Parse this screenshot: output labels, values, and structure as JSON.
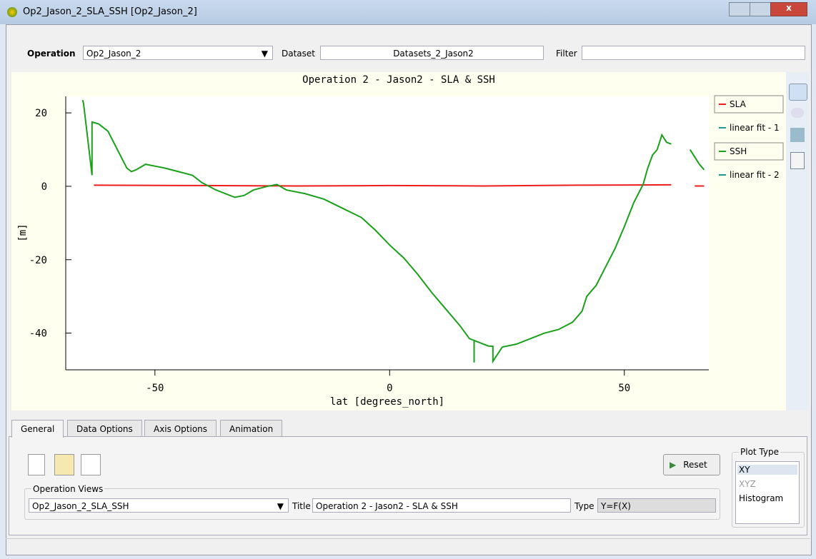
{
  "window": {
    "title": "Op2_Jason_2_SLA_SSH [Op2_Jason_2]"
  },
  "toolbar": {
    "operation_label": "Operation",
    "operation_value": "Op2_Jason_2",
    "dataset_label": "Dataset",
    "dataset_value": "Datasets_2_Jason2",
    "filter_label": "Filter"
  },
  "chart_data": {
    "type": "line",
    "title": "Operation 2 - Jason2 - SLA & SSH",
    "x_label": "lat [degrees_north]",
    "y_label": "[m]",
    "xlim": [
      -69,
      68
    ],
    "ylim": [
      -50,
      24.5
    ],
    "xticks": [
      -50,
      0,
      50
    ],
    "yticks": [
      -40,
      -20,
      0,
      20
    ],
    "series": [
      {
        "name": "SLA",
        "color": "#ee1c1c",
        "x": [
          -63,
          -40,
          -20,
          0,
          20,
          40,
          60,
          62,
          65,
          67
        ],
        "values": [
          0.3,
          0.2,
          0.1,
          0.2,
          0.1,
          0.3,
          0.4,
          null,
          0.1,
          0.1
        ]
      },
      {
        "name": "SSH",
        "color": "#1aa01a",
        "x": [
          -65.4,
          -65.2,
          -63.4,
          -63.4,
          -62,
          -60,
          -58,
          -56,
          -55,
          -54,
          -52,
          -50,
          -48,
          -45,
          -42,
          -40,
          -37,
          -35,
          -33,
          -31,
          -29,
          -26,
          -24,
          -22,
          -18,
          -14,
          -10,
          -6,
          -3,
          0,
          3,
          6,
          9,
          12,
          15,
          17,
          18,
          18,
          18,
          19,
          21,
          22,
          22,
          24,
          27,
          30,
          33,
          36,
          39,
          41,
          42,
          44,
          46,
          48,
          50,
          52,
          54,
          55,
          56,
          57,
          58,
          59,
          60,
          62,
          64,
          66,
          67
        ],
        "values": [
          23.5,
          22.5,
          3,
          17.5,
          17,
          15,
          10,
          5,
          4,
          4.5,
          6,
          5.5,
          5,
          4,
          3,
          1,
          -1,
          -2,
          -3,
          -2.5,
          -1,
          0,
          0.5,
          -1,
          -2,
          -3.5,
          -6,
          -8.5,
          -12,
          -16,
          -19.5,
          -24,
          -29,
          -33.5,
          -38,
          -41.5,
          -42,
          -48,
          -42,
          -42.5,
          -43.5,
          -43.6,
          -47.7,
          -43.8,
          -43,
          -41.5,
          -40,
          -39,
          -37,
          -34,
          -30,
          -27,
          -22,
          -17,
          -11,
          -4.5,
          0.5,
          5,
          8.5,
          10,
          14,
          12,
          11.5,
          null,
          10,
          6,
          4.5
        ]
      }
    ],
    "fits": [
      {
        "name": "linear fit - 1",
        "color": "#1a9a8a"
      },
      {
        "name": "linear fit - 2",
        "color": "#1a9a8a"
      }
    ]
  },
  "panel": {
    "tabs": [
      "General",
      "Data Options",
      "Axis Options",
      "Animation"
    ],
    "reset": "Reset",
    "operation_views_label": "Operation Views",
    "operation_views_value": "Op2_Jason_2_SLA_SSH",
    "title_label": "Title",
    "title_value": "Operation 2 - Jason2 - SLA & SSH",
    "type_label": "Type",
    "type_value": "Y=F(X)",
    "plot_type_label": "Plot Type",
    "plot_types": [
      "XY",
      "XYZ",
      "Histogram"
    ]
  }
}
